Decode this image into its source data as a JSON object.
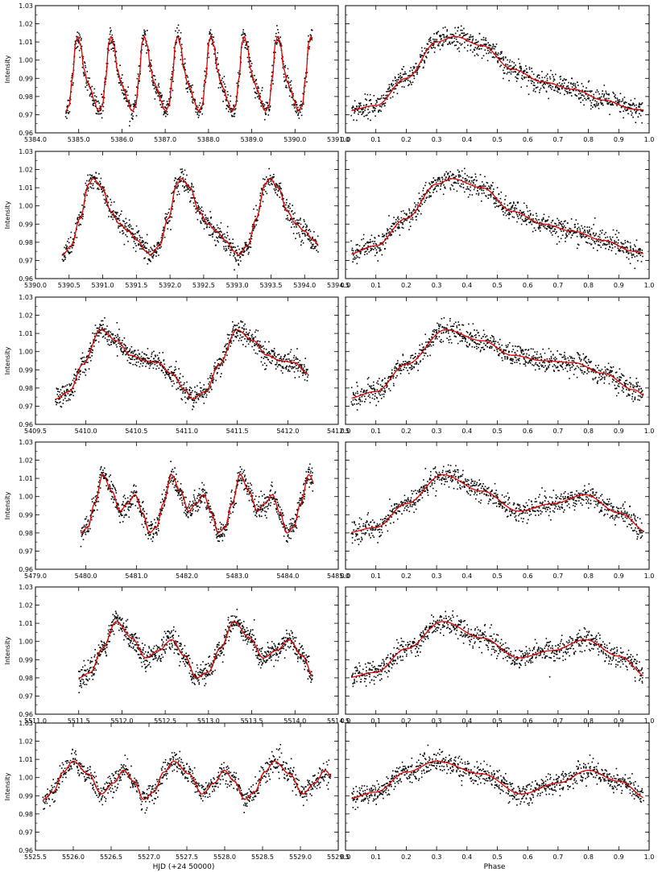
{
  "figure": {
    "xlabel_left": "HJD (+24 50000)",
    "xlabel_right": "Phase",
    "ylabel": "Intensity",
    "colors": {
      "points": "#000000",
      "fit": "#e00000",
      "axes": "#000000"
    }
  },
  "chart_data": [
    {
      "type": "scatter",
      "row": 1,
      "column": "time",
      "xlim": [
        5384.0,
        5391.0
      ],
      "ylim": [
        0.96,
        1.03
      ],
      "xticks": [
        "5384.0",
        "5385.0",
        "5386.0",
        "5387.0",
        "5388.0",
        "5389.0",
        "5390.0",
        "5391.0"
      ],
      "yticks": [
        "0.96",
        "0.97",
        "0.98",
        "0.99",
        "1.00",
        "1.01",
        "1.02",
        "1.03"
      ],
      "data_range": [
        5384.7,
        5390.4
      ],
      "period": 0.77,
      "peak_phase": 0.36,
      "model": {
        "phase": [
          0.0,
          0.1,
          0.2,
          0.3,
          0.36,
          0.45,
          0.55,
          0.65,
          0.75,
          0.85,
          0.95,
          1.0
        ],
        "intensity": [
          0.972,
          0.975,
          0.99,
          1.01,
          1.013,
          1.008,
          0.995,
          0.988,
          0.984,
          0.978,
          0.973,
          0.972
        ]
      },
      "scatter_amp": 0.003
    },
    {
      "type": "scatter",
      "row": 1,
      "column": "phase",
      "xlim": [
        0.0,
        1.0
      ],
      "ylim": [
        0.96,
        1.03
      ],
      "xticks": [
        "0.0",
        "0.1",
        "0.2",
        "0.3",
        "0.4",
        "0.5",
        "0.6",
        "0.7",
        "0.8",
        "0.9",
        "1.0"
      ],
      "yticks": [
        "0.96",
        "0.97",
        "0.98",
        "0.99",
        "1.00",
        "1.01",
        "1.02",
        "1.03"
      ],
      "data_range": [
        0.02,
        0.98
      ],
      "model": {
        "phase": [
          0.0,
          0.1,
          0.2,
          0.3,
          0.36,
          0.45,
          0.55,
          0.65,
          0.75,
          0.85,
          0.95,
          1.0
        ],
        "intensity": [
          0.972,
          0.975,
          0.99,
          1.01,
          1.013,
          1.008,
          0.995,
          0.988,
          0.984,
          0.978,
          0.973,
          0.972
        ]
      },
      "scatter_amp": 0.003
    },
    {
      "type": "scatter",
      "row": 2,
      "column": "time",
      "xlim": [
        5390.0,
        5394.5
      ],
      "ylim": [
        0.96,
        1.03
      ],
      "xticks": [
        "5390.0",
        "5390.5",
        "5391.0",
        "5391.5",
        "5392.0",
        "5392.5",
        "5393.0",
        "5393.5",
        "5394.0",
        "5394.5"
      ],
      "yticks": [
        "0.96",
        "0.97",
        "0.98",
        "0.99",
        "1.00",
        "1.01",
        "1.02",
        "1.03"
      ],
      "data_range": [
        5390.4,
        5394.2
      ],
      "period": 1.31,
      "peak_phase": 0.35,
      "model": {
        "phase": [
          0.0,
          0.1,
          0.2,
          0.3,
          0.35,
          0.45,
          0.55,
          0.65,
          0.75,
          0.85,
          0.95,
          1.0
        ],
        "intensity": [
          0.973,
          0.978,
          0.993,
          1.012,
          1.015,
          1.01,
          0.997,
          0.99,
          0.986,
          0.981,
          0.975,
          0.973
        ]
      },
      "scatter_amp": 0.003
    },
    {
      "type": "scatter",
      "row": 2,
      "column": "phase",
      "xlim": [
        0.0,
        1.0
      ],
      "ylim": [
        0.96,
        1.03
      ],
      "xticks": [
        "0.0",
        "0.1",
        "0.2",
        "0.3",
        "0.4",
        "0.5",
        "0.6",
        "0.7",
        "0.8",
        "0.9",
        "1.0"
      ],
      "yticks": [
        "0.96",
        "0.97",
        "0.98",
        "0.99",
        "1.00",
        "1.01",
        "1.02",
        "1.03"
      ],
      "data_range": [
        0.02,
        0.98
      ],
      "model": {
        "phase": [
          0.0,
          0.1,
          0.2,
          0.3,
          0.35,
          0.45,
          0.55,
          0.65,
          0.75,
          0.85,
          0.95,
          1.0
        ],
        "intensity": [
          0.973,
          0.978,
          0.993,
          1.012,
          1.015,
          1.01,
          0.997,
          0.99,
          0.986,
          0.981,
          0.975,
          0.973
        ]
      },
      "scatter_amp": 0.003
    },
    {
      "type": "scatter",
      "row": 3,
      "column": "time",
      "xlim": [
        5409.5,
        5412.5
      ],
      "ylim": [
        0.96,
        1.03
      ],
      "xticks": [
        "5409.5",
        "5410.0",
        "5410.5",
        "5411.0",
        "5411.5",
        "5412.0",
        "5412.5"
      ],
      "yticks": [
        "0.96",
        "0.97",
        "0.98",
        "0.99",
        "1.00",
        "1.01",
        "1.02",
        "1.03"
      ],
      "data_range": [
        5409.7,
        5412.2
      ],
      "period": 1.35,
      "peak_phase": 0.33,
      "model": {
        "phase": [
          0.0,
          0.1,
          0.2,
          0.33,
          0.45,
          0.55,
          0.65,
          0.75,
          0.85,
          0.95,
          1.0
        ],
        "intensity": [
          0.974,
          0.978,
          0.993,
          1.012,
          1.006,
          0.998,
          0.995,
          0.994,
          0.988,
          0.979,
          0.974
        ]
      },
      "scatter_amp": 0.003
    },
    {
      "type": "scatter",
      "row": 3,
      "column": "phase",
      "xlim": [
        0.0,
        1.0
      ],
      "ylim": [
        0.96,
        1.03
      ],
      "xticks": [
        "0.0",
        "0.1",
        "0.2",
        "0.3",
        "0.4",
        "0.5",
        "0.6",
        "0.7",
        "0.8",
        "0.9",
        "1.0"
      ],
      "yticks": [
        "0.96",
        "0.97",
        "0.98",
        "0.99",
        "1.00",
        "1.01",
        "1.02",
        "1.03"
      ],
      "data_range": [
        0.02,
        0.98
      ],
      "model": {
        "phase": [
          0.0,
          0.1,
          0.2,
          0.33,
          0.45,
          0.55,
          0.65,
          0.75,
          0.85,
          0.95,
          1.0
        ],
        "intensity": [
          0.974,
          0.978,
          0.993,
          1.012,
          1.006,
          0.998,
          0.995,
          0.994,
          0.988,
          0.979,
          0.974
        ]
      },
      "scatter_amp": 0.003
    },
    {
      "type": "scatter",
      "row": 4,
      "column": "time",
      "xlim": [
        5479.0,
        5485.0
      ],
      "ylim": [
        0.96,
        1.03
      ],
      "xticks": [
        "5479.0",
        "5480.0",
        "5481.0",
        "5482.0",
        "5483.0",
        "5484.0",
        "5485.0"
      ],
      "yticks": [
        "0.96",
        "0.97",
        "0.98",
        "0.99",
        "1.00",
        "1.01",
        "1.02",
        "1.03"
      ],
      "data_range": [
        5479.9,
        5484.5
      ],
      "period": 1.36,
      "peak_phase": 0.32,
      "model": {
        "phase": [
          0.0,
          0.1,
          0.2,
          0.32,
          0.45,
          0.57,
          0.68,
          0.79,
          0.9,
          1.0
        ],
        "intensity": [
          0.98,
          0.983,
          0.996,
          1.012,
          1.003,
          0.992,
          0.996,
          1.001,
          0.991,
          0.98
        ]
      },
      "scatter_amp": 0.003
    },
    {
      "type": "scatter",
      "row": 4,
      "column": "phase",
      "xlim": [
        0.0,
        1.0
      ],
      "ylim": [
        0.96,
        1.03
      ],
      "xticks": [
        "0.0",
        "0.1",
        "0.2",
        "0.3",
        "0.4",
        "0.5",
        "0.6",
        "0.7",
        "0.8",
        "0.9",
        "1.0"
      ],
      "yticks": [
        "0.96",
        "0.97",
        "0.98",
        "0.99",
        "1.00",
        "1.01",
        "1.02",
        "1.03"
      ],
      "data_range": [
        0.02,
        0.98
      ],
      "model": {
        "phase": [
          0.0,
          0.1,
          0.2,
          0.32,
          0.45,
          0.57,
          0.68,
          0.79,
          0.9,
          1.0
        ],
        "intensity": [
          0.98,
          0.983,
          0.996,
          1.012,
          1.003,
          0.992,
          0.996,
          1.001,
          0.991,
          0.98
        ]
      },
      "scatter_amp": 0.003
    },
    {
      "type": "scatter",
      "row": 5,
      "column": "time",
      "xlim": [
        5511.0,
        5514.5
      ],
      "ylim": [
        0.96,
        1.03
      ],
      "xticks": [
        "5511.0",
        "5511.5",
        "5512.0",
        "5512.5",
        "5513.0",
        "5513.5",
        "5514.0",
        "5514.5"
      ],
      "yticks": [
        "0.96",
        "0.97",
        "0.98",
        "0.99",
        "1.00",
        "1.01",
        "1.02",
        "1.03"
      ],
      "data_range": [
        5511.5,
        5514.2
      ],
      "period": 1.36,
      "peak_phase": 0.32,
      "model": {
        "phase": [
          0.0,
          0.1,
          0.2,
          0.32,
          0.45,
          0.57,
          0.68,
          0.79,
          0.9,
          1.0
        ],
        "intensity": [
          0.98,
          0.983,
          0.996,
          1.011,
          1.002,
          0.991,
          0.995,
          1.001,
          0.992,
          0.98
        ]
      },
      "scatter_amp": 0.003
    },
    {
      "type": "scatter",
      "row": 5,
      "column": "phase",
      "xlim": [
        0.0,
        1.0
      ],
      "ylim": [
        0.96,
        1.03
      ],
      "xticks": [
        "0.0",
        "0.1",
        "0.2",
        "0.3",
        "0.4",
        "0.5",
        "0.6",
        "0.7",
        "0.8",
        "0.9",
        "1.0"
      ],
      "yticks": [
        "0.96",
        "0.97",
        "0.98",
        "0.99",
        "1.00",
        "1.01",
        "1.02",
        "1.03"
      ],
      "data_range": [
        0.02,
        0.98
      ],
      "model": {
        "phase": [
          0.0,
          0.1,
          0.2,
          0.32,
          0.45,
          0.57,
          0.68,
          0.79,
          0.9,
          1.0
        ],
        "intensity": [
          0.98,
          0.983,
          0.996,
          1.011,
          1.002,
          0.991,
          0.995,
          1.001,
          0.992,
          0.98
        ]
      },
      "scatter_amp": 0.003
    },
    {
      "type": "scatter",
      "row": 6,
      "column": "time",
      "xlim": [
        5525.5,
        5529.5
      ],
      "ylim": [
        0.96,
        1.03
      ],
      "xticks": [
        "5525.5",
        "5526.0",
        "5526.5",
        "5527.0",
        "5527.5",
        "5528.0",
        "5528.5",
        "5529.0",
        "5529.5"
      ],
      "yticks": [
        "0.96",
        "0.97",
        "0.98",
        "0.99",
        "1.00",
        "1.01",
        "1.02",
        "1.03"
      ],
      "data_range": [
        5525.6,
        5529.4
      ],
      "period": 1.33,
      "peak_phase": 0.3,
      "model": {
        "phase": [
          0.0,
          0.1,
          0.2,
          0.3,
          0.45,
          0.58,
          0.7,
          0.8,
          0.9,
          1.0
        ],
        "intensity": [
          0.988,
          0.992,
          1.003,
          1.009,
          1.002,
          0.991,
          0.997,
          1.004,
          0.998,
          0.988
        ]
      },
      "scatter_amp": 0.003
    },
    {
      "type": "scatter",
      "row": 6,
      "column": "phase",
      "xlim": [
        0.0,
        1.0
      ],
      "ylim": [
        0.96,
        1.03
      ],
      "xticks": [
        "0.0",
        "0.1",
        "0.2",
        "0.3",
        "0.4",
        "0.5",
        "0.6",
        "0.7",
        "0.8",
        "0.9",
        "1.0"
      ],
      "yticks": [
        "0.96",
        "0.97",
        "0.98",
        "0.99",
        "1.00",
        "1.01",
        "1.02",
        "1.03"
      ],
      "data_range": [
        0.02,
        0.98
      ],
      "model": {
        "phase": [
          0.0,
          0.1,
          0.2,
          0.3,
          0.45,
          0.58,
          0.7,
          0.8,
          0.9,
          1.0
        ],
        "intensity": [
          0.988,
          0.992,
          1.003,
          1.009,
          1.002,
          0.991,
          0.997,
          1.004,
          0.998,
          0.988
        ]
      },
      "scatter_amp": 0.003
    }
  ]
}
